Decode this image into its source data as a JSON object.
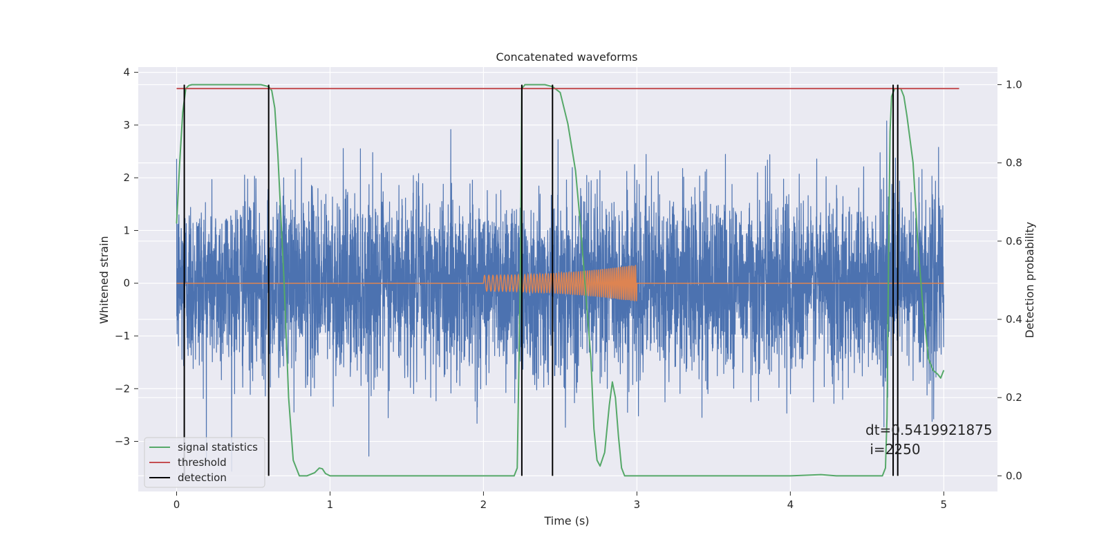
{
  "chart_data": {
    "type": "line",
    "title": "Concatenated waveforms",
    "xlabel": "Time (s)",
    "ylabel_left": "Whitened strain",
    "ylabel_right": "Detection probability",
    "xlim": [
      -0.25,
      5.35
    ],
    "ylim_left": [
      -3.95,
      4.1
    ],
    "ylim_right": [
      -0.04,
      1.045
    ],
    "xticks": [
      "0",
      "1",
      "2",
      "3",
      "4",
      "5"
    ],
    "yticks_left": [
      "−3",
      "−2",
      "−1",
      "0",
      "1",
      "2",
      "3",
      "4"
    ],
    "yticks_right": [
      "0.0",
      "0.2",
      "0.4",
      "0.6",
      "0.8",
      "1.0"
    ],
    "grid": true,
    "legend_position": "lower-left",
    "legend": [
      "signal statistics",
      "threshold",
      "detection"
    ],
    "colors": {
      "strain": "#4c72b0",
      "injection": "#dd8452",
      "signal_statistics": "#55a868",
      "threshold": "#c44e52",
      "detection": "#000000",
      "plot_bg": "#eaeaf2",
      "grid": "#ffffff"
    },
    "series": [
      {
        "name": "signal statistics",
        "axis": "right",
        "x": [
          0.0,
          0.02,
          0.04,
          0.06,
          0.08,
          0.1,
          0.2,
          0.3,
          0.4,
          0.5,
          0.55,
          0.6,
          0.62,
          0.64,
          0.66,
          0.7,
          0.73,
          0.76,
          0.8,
          0.85,
          0.9,
          0.93,
          0.95,
          0.97,
          1.0,
          1.5,
          2.0,
          2.2,
          2.22,
          2.24,
          2.25,
          2.27,
          2.3,
          2.4,
          2.45,
          2.5,
          2.55,
          2.6,
          2.63,
          2.66,
          2.7,
          2.72,
          2.74,
          2.76,
          2.79,
          2.82,
          2.84,
          2.86,
          2.88,
          2.9,
          2.92,
          2.95,
          3.0,
          3.5,
          4.0,
          4.2,
          4.3,
          4.5,
          4.6,
          4.62,
          4.63,
          4.64,
          4.65,
          4.66,
          4.68,
          4.72,
          4.74,
          4.76,
          4.8,
          4.83,
          4.86,
          4.9,
          4.93,
          4.96,
          4.98,
          5.0
        ],
        "values": [
          0.645,
          0.8,
          0.93,
          0.99,
          0.998,
          1.0,
          1.0,
          1.0,
          1.0,
          1.0,
          1.0,
          0.995,
          0.985,
          0.94,
          0.82,
          0.5,
          0.2,
          0.04,
          0.0,
          0.0,
          0.008,
          0.02,
          0.018,
          0.006,
          0.0,
          0.0,
          0.0,
          0.0,
          0.02,
          0.5,
          0.99,
          1.0,
          1.0,
          1.0,
          0.995,
          0.98,
          0.9,
          0.78,
          0.65,
          0.5,
          0.3,
          0.12,
          0.04,
          0.025,
          0.06,
          0.18,
          0.24,
          0.2,
          0.1,
          0.02,
          0.0,
          0.0,
          0.0,
          0.0,
          0.0,
          0.003,
          0.0,
          0.0,
          0.0,
          0.02,
          0.15,
          0.55,
          0.88,
          0.97,
          0.99,
          0.99,
          0.97,
          0.92,
          0.8,
          0.6,
          0.45,
          0.3,
          0.27,
          0.26,
          0.25,
          0.27
        ]
      },
      {
        "name": "threshold",
        "axis": "right",
        "x": [
          0.0,
          5.1
        ],
        "values": [
          0.99,
          0.99
        ]
      }
    ],
    "detections": [
      0.05,
      0.6,
      2.25,
      2.45,
      4.67,
      4.7
    ],
    "injection": {
      "start": 2.0,
      "end": 3.0,
      "amplitude_start": 0.15,
      "amplitude_end": 0.35
    },
    "annotation": [
      "dt=0.5419921875",
      " i=2250"
    ]
  }
}
